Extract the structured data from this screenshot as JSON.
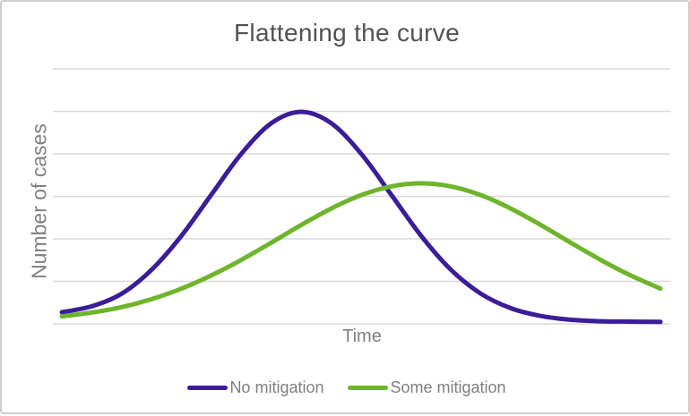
{
  "chart_data": {
    "type": "line",
    "title": "Flattening the curve",
    "xlabel": "Time",
    "ylabel": "Number of cases",
    "x": [
      0,
      5,
      10,
      15,
      20,
      25,
      30,
      35,
      40,
      45,
      50,
      55,
      60,
      65,
      70,
      75,
      80,
      85,
      90,
      95,
      100
    ],
    "series": [
      {
        "name": "No mitigation",
        "color": "#3b1d98",
        "values": [
          4.7,
          7.5,
          13.5,
          24.9,
          41.1,
          60.7,
          80.1,
          94.6,
          100,
          94.6,
          80.1,
          60.7,
          41.1,
          24.9,
          13.5,
          6.6,
          2.9,
          1.1,
          0.4,
          0.2,
          0.1
        ]
      },
      {
        "name": "Some mitigation",
        "color": "#6eb52c",
        "values": [
          2.7,
          4.5,
          7.1,
          10.9,
          15.9,
          22.2,
          29.6,
          37.8,
          46.2,
          54.0,
          60.4,
          64.5,
          66.0,
          64.5,
          60.4,
          54.0,
          46.2,
          37.8,
          29.6,
          22.2,
          15.9
        ]
      }
    ],
    "ylim": [
      0,
      105
    ],
    "grid": "horizontal",
    "gridline_count": 7,
    "legend_position": "bottom"
  }
}
